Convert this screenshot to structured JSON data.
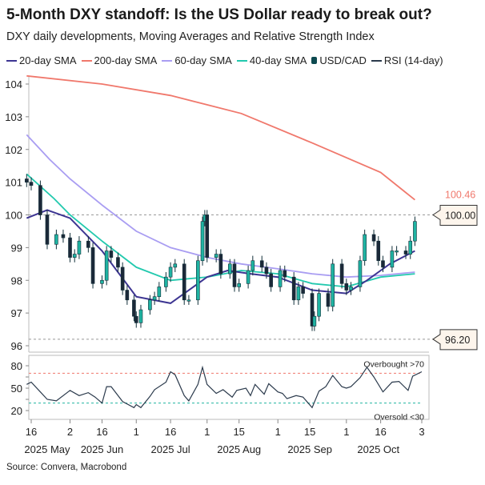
{
  "title": "5-Month DXY standoff: Is the US Dollar ready to break out?",
  "subtitle": "DXY daily developments, Moving Averages and Relative Strength Index",
  "source": "Source: Convera, Macrobond",
  "legend": [
    {
      "label": "20-day SMA",
      "color": "#3d3592"
    },
    {
      "label": "200-day SMA",
      "color": "#f0786c"
    },
    {
      "label": "60-day SMA",
      "color": "#a99df2"
    },
    {
      "label": "40-day SMA",
      "color": "#22c9ae"
    },
    {
      "label": "USD/CAD",
      "color": "#0d4a50",
      "icon": "candlestick-icon"
    },
    {
      "label": "RSI (14-day)",
      "color": "#2b3a4c"
    }
  ],
  "chart_data": [
    {
      "type": "candlestick",
      "panel": "price",
      "ylim": [
        96,
        104
      ],
      "yticks": [
        "96",
        "97",
        "98",
        "99",
        "100",
        "101",
        "102",
        "103",
        "104"
      ],
      "reference_lines": [
        {
          "value": 100,
          "label": "100.00"
        },
        {
          "value": 96.2,
          "label": "96.20"
        }
      ],
      "last_value_labels": [
        {
          "series": "200-day SMA",
          "label": "100.46"
        }
      ],
      "colors": {
        "up": "#1fb3a2",
        "down": "#1b2838",
        "outline": "#12303a"
      },
      "candles": {
        "dates": [
          "2025-05-14",
          "2025-05-16",
          "2025-05-20",
          "2025-05-23",
          "2025-05-27",
          "2025-05-30",
          "2025-06-02",
          "2025-06-04",
          "2025-06-06",
          "2025-06-10",
          "2025-06-12",
          "2025-06-16",
          "2025-06-18",
          "2025-06-20",
          "2025-06-23",
          "2025-06-25",
          "2025-06-27",
          "2025-06-30",
          "2025-07-01",
          "2025-07-03",
          "2025-07-07",
          "2025-07-09",
          "2025-07-11",
          "2025-07-14",
          "2025-07-16",
          "2025-07-18",
          "2025-07-22",
          "2025-07-24",
          "2025-07-28",
          "2025-07-30",
          "2025-07-31",
          "2025-08-01",
          "2025-08-05",
          "2025-08-07",
          "2025-08-11",
          "2025-08-13",
          "2025-08-15",
          "2025-08-19",
          "2025-08-21",
          "2025-08-25",
          "2025-08-27",
          "2025-08-29",
          "2025-09-02",
          "2025-09-04",
          "2025-09-08",
          "2025-09-10",
          "2025-09-12",
          "2025-09-16",
          "2025-09-17",
          "2025-09-19",
          "2025-09-23",
          "2025-09-25",
          "2025-09-29",
          "2025-10-01",
          "2025-10-03",
          "2025-10-07",
          "2025-10-09",
          "2025-10-13",
          "2025-10-15",
          "2025-10-17",
          "2025-10-21",
          "2025-10-23",
          "2025-10-27",
          "2025-10-29",
          "2025-10-31"
        ],
        "close": [
          101.0,
          100.9,
          100.0,
          99.1,
          99.4,
          99.3,
          98.7,
          98.8,
          99.2,
          99.0,
          97.9,
          98.0,
          98.9,
          98.7,
          98.4,
          97.7,
          97.4,
          96.9,
          96.7,
          97.1,
          97.4,
          97.5,
          97.8,
          98.1,
          98.4,
          98.5,
          97.4,
          97.4,
          98.6,
          99.8,
          100.0,
          98.7,
          98.8,
          98.2,
          98.5,
          97.8,
          97.9,
          98.3,
          98.6,
          98.4,
          98.2,
          97.8,
          98.3,
          98.1,
          97.4,
          97.8,
          97.6,
          96.6,
          96.9,
          97.6,
          97.2,
          98.5,
          97.9,
          97.7,
          97.8,
          98.6,
          99.4,
          99.2,
          98.6,
          98.4,
          98.9,
          98.9,
          98.8,
          99.2,
          99.8
        ]
      },
      "series": [
        {
          "name": "200-day SMA",
          "dates": [
            "2025-05-14",
            "2025-06-16",
            "2025-07-16",
            "2025-08-16",
            "2025-09-16",
            "2025-10-16",
            "2025-10-31"
          ],
          "values": [
            104.25,
            104.0,
            103.65,
            103.1,
            102.2,
            101.3,
            100.46
          ]
        },
        {
          "name": "60-day SMA",
          "dates": [
            "2025-05-14",
            "2025-05-24",
            "2025-06-02",
            "2025-06-16",
            "2025-07-01",
            "2025-07-16",
            "2025-08-01",
            "2025-08-16",
            "2025-09-01",
            "2025-09-16",
            "2025-10-01",
            "2025-10-16",
            "2025-10-31"
          ],
          "values": [
            102.45,
            101.7,
            101.1,
            100.3,
            99.5,
            99.0,
            98.7,
            98.5,
            98.35,
            98.2,
            98.1,
            98.15,
            98.25
          ]
        },
        {
          "name": "40-day SMA",
          "dates": [
            "2025-05-14",
            "2025-05-26",
            "2025-06-02",
            "2025-06-16",
            "2025-07-01",
            "2025-07-16",
            "2025-08-01",
            "2025-08-16",
            "2025-09-01",
            "2025-09-16",
            "2025-10-01",
            "2025-10-16",
            "2025-10-31"
          ],
          "values": [
            101.25,
            100.5,
            100.0,
            99.2,
            98.4,
            98.0,
            98.1,
            98.3,
            98.2,
            97.9,
            97.8,
            98.1,
            98.2
          ]
        },
        {
          "name": "20-day SMA",
          "dates": [
            "2025-05-14",
            "2025-05-23",
            "2025-06-02",
            "2025-06-16",
            "2025-07-01",
            "2025-07-16",
            "2025-08-01",
            "2025-08-10",
            "2025-08-20",
            "2025-09-01",
            "2025-09-16",
            "2025-10-01",
            "2025-10-10",
            "2025-10-20",
            "2025-10-31"
          ],
          "values": [
            99.9,
            100.15,
            99.9,
            98.9,
            97.5,
            97.3,
            98.1,
            98.3,
            98.2,
            98.1,
            97.7,
            97.6,
            98.0,
            98.5,
            98.9
          ]
        }
      ]
    },
    {
      "type": "line",
      "panel": "rsi",
      "series_name": "RSI (14-day)",
      "ylim": [
        15,
        85
      ],
      "yticks": [
        "20",
        "50",
        "80"
      ],
      "thresholds": [
        {
          "value": 70,
          "label": "Overbought >70",
          "color": "#f0786c"
        },
        {
          "value": 30,
          "label": "Oversold <30",
          "color": "#22b5a0"
        }
      ],
      "dates": [
        "2025-05-14",
        "2025-05-16",
        "2025-05-20",
        "2025-05-23",
        "2025-05-27",
        "2025-06-02",
        "2025-06-06",
        "2025-06-10",
        "2025-06-13",
        "2025-06-16",
        "2025-06-18",
        "2025-06-20",
        "2025-06-25",
        "2025-06-30",
        "2025-07-01",
        "2025-07-03",
        "2025-07-07",
        "2025-07-09",
        "2025-07-14",
        "2025-07-16",
        "2025-07-18",
        "2025-07-22",
        "2025-07-24",
        "2025-07-28",
        "2025-07-30",
        "2025-08-01",
        "2025-08-05",
        "2025-08-08",
        "2025-08-12",
        "2025-08-14",
        "2025-08-18",
        "2025-08-20",
        "2025-08-22",
        "2025-08-26",
        "2025-08-28",
        "2025-09-01",
        "2025-09-03",
        "2025-09-05",
        "2025-09-09",
        "2025-09-12",
        "2025-09-16",
        "2025-09-19",
        "2025-09-22",
        "2025-09-25",
        "2025-09-29",
        "2025-10-01",
        "2025-10-03",
        "2025-10-07",
        "2025-10-10",
        "2025-10-13",
        "2025-10-17",
        "2025-10-21",
        "2025-10-24",
        "2025-10-28",
        "2025-10-30",
        "2025-11-03"
      ],
      "values": [
        55,
        58,
        45,
        35,
        33,
        47,
        40,
        44,
        38,
        30,
        52,
        52,
        32,
        24,
        28,
        24,
        39,
        48,
        58,
        72,
        68,
        40,
        33,
        55,
        78,
        55,
        43,
        48,
        38,
        47,
        50,
        40,
        55,
        42,
        56,
        45,
        43,
        36,
        40,
        38,
        24,
        46,
        52,
        67,
        52,
        50,
        52,
        64,
        78,
        65,
        45,
        58,
        59,
        47,
        66,
        72
      ]
    }
  ],
  "x_axis": {
    "day_ticks": [
      {
        "date": "2025-05-16",
        "label": "16"
      },
      {
        "date": "2025-06-02",
        "label": "2"
      },
      {
        "date": "2025-06-16",
        "label": "16"
      },
      {
        "date": "2025-07-01",
        "label": "1"
      },
      {
        "date": "2025-07-16",
        "label": "16"
      },
      {
        "date": "2025-08-01",
        "label": "1"
      },
      {
        "date": "2025-08-15",
        "label": "15"
      },
      {
        "date": "2025-09-01",
        "label": "1"
      },
      {
        "date": "2025-09-15",
        "label": "15"
      },
      {
        "date": "2025-10-01",
        "label": "1"
      },
      {
        "date": "2025-10-16",
        "label": "16"
      },
      {
        "date": "2025-11-03",
        "label": "3"
      }
    ],
    "month_labels": [
      {
        "date": "2025-05-23",
        "label": "2025 May"
      },
      {
        "date": "2025-06-16",
        "label": "2025 Jun"
      },
      {
        "date": "2025-07-16",
        "label": "2025 Jul"
      },
      {
        "date": "2025-08-15",
        "label": "2025 Aug"
      },
      {
        "date": "2025-09-15",
        "label": "2025 Sep"
      },
      {
        "date": "2025-10-15",
        "label": "2025 Oct"
      }
    ]
  }
}
